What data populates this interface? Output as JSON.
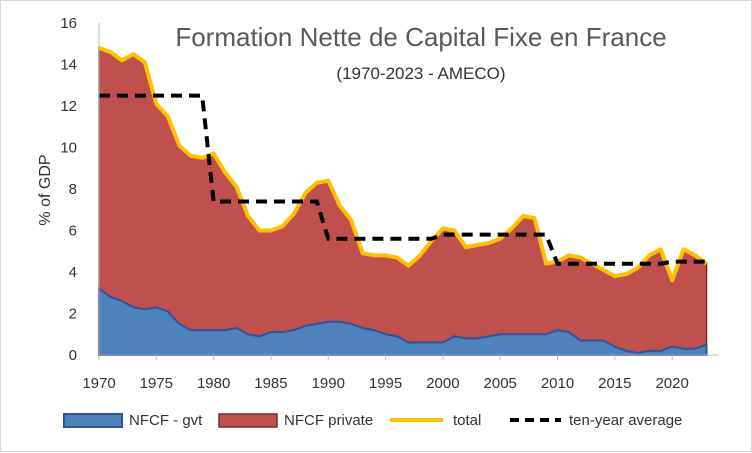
{
  "chart_data": {
    "type": "area",
    "title": "Formation Nette de Capital Fixe en France",
    "subtitle": "(1970-2023 - AMECO)",
    "ylabel": "% of GDP",
    "xlabel": "",
    "ylim": [
      0,
      16
    ],
    "yticks": [
      0,
      2,
      4,
      6,
      8,
      10,
      12,
      14,
      16
    ],
    "xlim": [
      1970,
      2024
    ],
    "xticks": [
      1970,
      1975,
      1980,
      1985,
      1990,
      1995,
      2000,
      2005,
      2010,
      2015,
      2020
    ],
    "grid": false,
    "legend_position": "bottom",
    "x": [
      1970,
      1971,
      1972,
      1973,
      1974,
      1975,
      1976,
      1977,
      1978,
      1979,
      1980,
      1981,
      1982,
      1983,
      1984,
      1985,
      1986,
      1987,
      1988,
      1989,
      1990,
      1991,
      1992,
      1993,
      1994,
      1995,
      1996,
      1997,
      1998,
      1999,
      2000,
      2001,
      2002,
      2003,
      2004,
      2005,
      2006,
      2007,
      2008,
      2009,
      2010,
      2011,
      2012,
      2013,
      2014,
      2015,
      2016,
      2017,
      2018,
      2019,
      2020,
      2021,
      2022,
      2023
    ],
    "series": [
      {
        "name": "NFCF - gvt",
        "kind": "area",
        "color": "#4f81bd",
        "edge_color": "#2f5597",
        "values": [
          3.2,
          2.8,
          2.6,
          2.3,
          2.2,
          2.3,
          2.1,
          1.5,
          1.2,
          1.2,
          1.2,
          1.2,
          1.3,
          1.0,
          0.9,
          1.1,
          1.1,
          1.2,
          1.4,
          1.5,
          1.6,
          1.6,
          1.5,
          1.3,
          1.2,
          1.0,
          0.9,
          0.6,
          0.6,
          0.6,
          0.6,
          0.9,
          0.8,
          0.8,
          0.9,
          1.0,
          1.0,
          1.0,
          1.0,
          1.0,
          1.2,
          1.1,
          0.7,
          0.7,
          0.7,
          0.4,
          0.2,
          0.1,
          0.2,
          0.2,
          0.4,
          0.3,
          0.3,
          0.5
        ]
      },
      {
        "name": "NFCF private",
        "kind": "area",
        "color": "#c0504d",
        "edge_color": "#7a2c2a",
        "values": [
          11.6,
          11.8,
          11.6,
          12.2,
          11.9,
          9.8,
          9.4,
          8.6,
          8.4,
          8.3,
          8.5,
          7.6,
          6.8,
          5.7,
          5.1,
          4.9,
          5.1,
          5.6,
          6.4,
          6.8,
          6.8,
          5.6,
          5.0,
          3.6,
          3.6,
          3.8,
          3.8,
          3.7,
          4.2,
          4.9,
          5.5,
          5.1,
          4.4,
          4.5,
          4.5,
          4.6,
          5.1,
          5.7,
          5.6,
          3.4,
          3.3,
          3.7,
          4.0,
          3.7,
          3.4,
          3.4,
          3.7,
          4.1,
          4.6,
          4.9,
          3.2,
          4.8,
          4.5,
          3.9
        ]
      },
      {
        "name": "total",
        "kind": "line",
        "color": "#ffc000",
        "values": [
          14.8,
          14.6,
          14.2,
          14.5,
          14.1,
          12.1,
          11.5,
          10.1,
          9.6,
          9.5,
          9.7,
          8.8,
          8.1,
          6.7,
          6.0,
          6.0,
          6.2,
          6.8,
          7.8,
          8.3,
          8.4,
          7.2,
          6.5,
          4.9,
          4.8,
          4.8,
          4.7,
          4.3,
          4.8,
          5.5,
          6.1,
          6.0,
          5.2,
          5.3,
          5.4,
          5.6,
          6.1,
          6.7,
          6.6,
          4.4,
          4.5,
          4.8,
          4.7,
          4.4,
          4.1,
          3.8,
          3.9,
          4.2,
          4.8,
          5.1,
          3.6,
          5.1,
          4.8,
          4.4
        ]
      },
      {
        "name": "ten-year average",
        "kind": "step",
        "color": "#000000",
        "dash": "dashed",
        "steps": [
          {
            "x0": 1970,
            "x1": 1979,
            "y": 12.5
          },
          {
            "x0": 1980,
            "x1": 1989,
            "y": 7.4
          },
          {
            "x0": 1990,
            "x1": 1999,
            "y": 5.6
          },
          {
            "x0": 2000,
            "x1": 2009,
            "y": 5.8
          },
          {
            "x0": 2010,
            "x1": 2019,
            "y": 4.4
          },
          {
            "x0": 2020,
            "x1": 2023,
            "y": 4.5
          }
        ]
      }
    ]
  }
}
